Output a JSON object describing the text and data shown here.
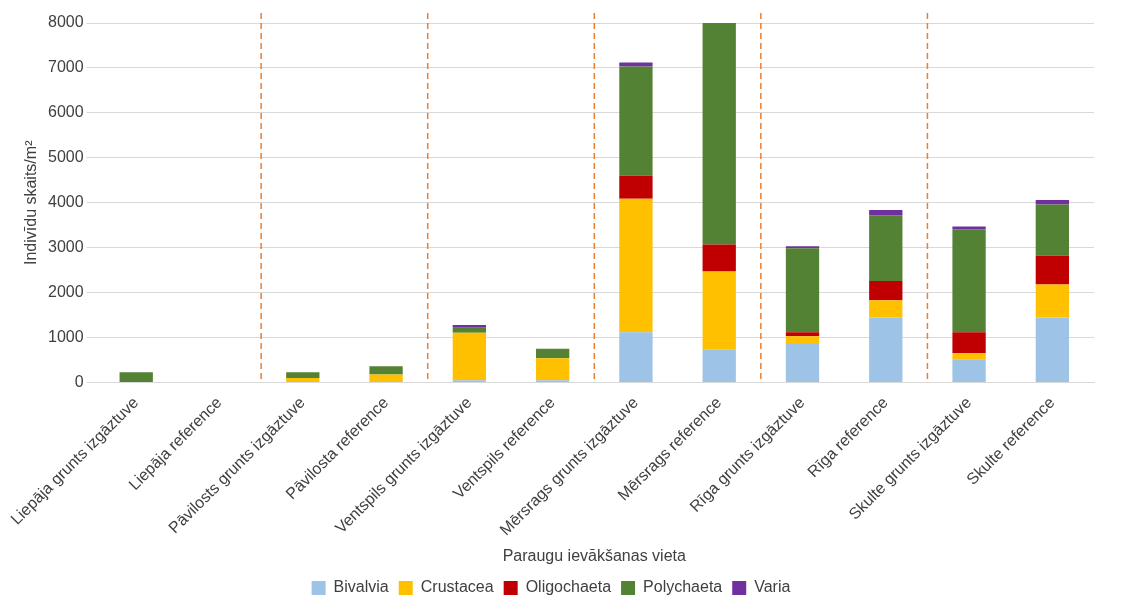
{
  "chart_data": {
    "type": "bar",
    "stacked": true,
    "xlabel": "Paraugu ievākšanas vieta",
    "ylabel": "Indivīdu skaits/m²",
    "categories": [
      "Liepāja grunts izgāztuve",
      "Liepāja reference",
      "Pāvilosts grunts izgāztuve",
      "Pāvilosta reference",
      "Ventspils grunts izgāztuve",
      "Ventspils reference",
      "Mērsrags grunts izgāztuve",
      "Mērsrags reference",
      "Rīga grunts izgāztuve",
      "Rīga reference",
      "Skulte grunts izgāztuve",
      "Skulte reference"
    ],
    "series": [
      {
        "name": "Bivalvia",
        "color": "#9dc3e6",
        "values": [
          0,
          0,
          0,
          0,
          50,
          50,
          1120,
          730,
          860,
          1450,
          520,
          1450
        ]
      },
      {
        "name": "Crustacea",
        "color": "#ffc000",
        "values": [
          0,
          0,
          100,
          180,
          1060,
          490,
          2970,
          1740,
          170,
          380,
          130,
          730
        ]
      },
      {
        "name": "Oligochaeta",
        "color": "#c00000",
        "values": [
          0,
          0,
          0,
          0,
          0,
          0,
          510,
          600,
          90,
          430,
          470,
          640
        ]
      },
      {
        "name": "Polychaeta",
        "color": "#548235",
        "values": [
          230,
          0,
          130,
          180,
          110,
          210,
          2430,
          4930,
          1870,
          1460,
          2290,
          1140
        ]
      },
      {
        "name": "Varia",
        "color": "#7030a0",
        "values": [
          0,
          0,
          0,
          0,
          60,
          0,
          90,
          0,
          40,
          120,
          60,
          100
        ]
      }
    ],
    "ylim": [
      0,
      8000
    ],
    "yticks": [
      0,
      1000,
      2000,
      3000,
      4000,
      5000,
      6000,
      7000,
      8000
    ],
    "grid": "y",
    "legend": "bottom"
  }
}
